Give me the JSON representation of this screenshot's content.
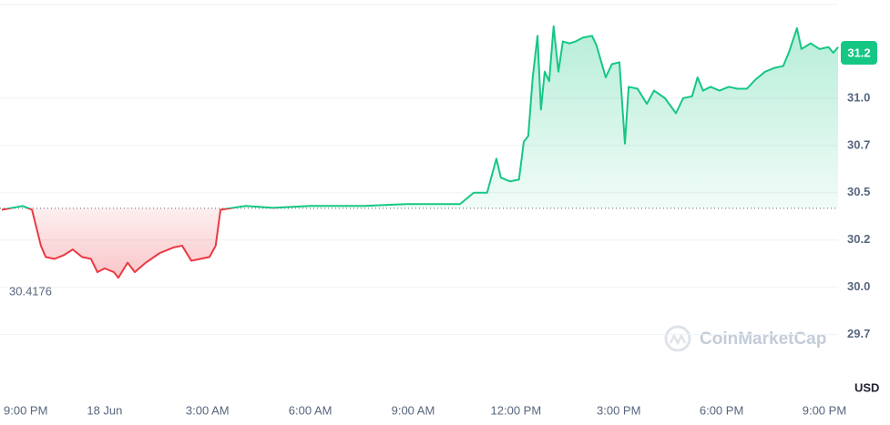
{
  "chart_data": {
    "type": "line",
    "x": [
      0,
      0.61,
      0.88,
      1.14,
      1.28,
      1.54,
      1.81,
      2.07,
      2.34,
      2.6,
      2.79,
      3.0,
      3.27,
      3.4,
      3.67,
      3.88,
      4.2,
      4.6,
      5.0,
      5.26,
      5.53,
      5.79,
      6.06,
      6.24,
      6.38,
      7.1,
      7.92,
      9.0,
      10.58,
      11.8,
      13.37,
      13.77,
      14.16,
      14.43,
      14.56,
      14.83,
      15.09,
      15.23,
      15.36,
      15.49,
      15.63,
      15.73,
      15.84,
      15.97,
      16.1,
      16.24,
      16.37,
      16.56,
      16.74,
      16.95,
      17.22,
      17.35,
      17.62,
      17.8,
      18.02,
      18.18,
      18.29,
      18.55,
      18.82,
      19.03,
      19.35,
      19.67,
      19.88,
      20.14,
      20.3,
      20.46,
      20.68,
      20.94,
      21.21,
      21.47,
      21.74,
      22.0,
      22.27,
      22.54,
      22.8,
      22.96,
      23.2,
      23.33,
      23.6,
      23.86,
      24.12,
      24.26,
      24.4
    ],
    "series": [
      {
        "name": "Price",
        "values": [
          30.41,
          30.43,
          30.41,
          30.22,
          30.16,
          30.15,
          30.17,
          30.2,
          30.16,
          30.15,
          30.08,
          30.1,
          30.08,
          30.05,
          30.13,
          30.08,
          30.13,
          30.18,
          30.21,
          30.22,
          30.14,
          30.15,
          30.16,
          30.22,
          30.41,
          30.43,
          30.42,
          30.43,
          30.43,
          30.44,
          30.44,
          30.5,
          30.5,
          30.68,
          30.58,
          30.56,
          30.57,
          30.77,
          30.8,
          31.11,
          31.33,
          30.94,
          31.14,
          31.09,
          31.38,
          31.14,
          31.3,
          31.29,
          31.3,
          31.32,
          31.33,
          31.28,
          31.11,
          31.18,
          31.19,
          30.76,
          31.06,
          31.05,
          30.97,
          31.04,
          31.0,
          30.92,
          31.0,
          31.01,
          31.11,
          31.04,
          31.06,
          31.04,
          31.06,
          31.05,
          31.05,
          31.1,
          31.14,
          31.16,
          31.17,
          31.24,
          31.37,
          31.26,
          31.29,
          31.26,
          31.27,
          31.24,
          31.27
        ]
      }
    ],
    "baseline": 30.4176,
    "current_price": {
      "value": 31.24,
      "label": "31.2"
    },
    "up_color": "#16c784",
    "down_color": "#ea3943",
    "xlim": [
      0,
      24.4
    ],
    "ylim": [
      29.44,
      31.5
    ],
    "xticks": [
      {
        "value": 0,
        "label": "9:00 PM"
      },
      {
        "value": 3,
        "label": "18 Jun"
      },
      {
        "value": 6,
        "label": "3:00 AM"
      },
      {
        "value": 9,
        "label": "6:00 AM"
      },
      {
        "value": 12,
        "label": "9:00 AM"
      },
      {
        "value": 15,
        "label": "12:00 PM"
      },
      {
        "value": 18,
        "label": "3:00 PM"
      },
      {
        "value": 21,
        "label": "6:00 PM"
      },
      {
        "value": 24,
        "label": "9:00 PM"
      }
    ],
    "yticks": [
      {
        "value": 29.75,
        "label": "29.7"
      },
      {
        "value": 30,
        "label": "30.0"
      },
      {
        "value": 30.25,
        "label": "30.2"
      },
      {
        "value": 30.5,
        "label": "30.5"
      },
      {
        "value": 30.75,
        "label": "30.7"
      },
      {
        "value": 31,
        "label": "31.0"
      }
    ],
    "y_unit": "USD",
    "watermark": "CoinMarketCap",
    "grid": true
  }
}
